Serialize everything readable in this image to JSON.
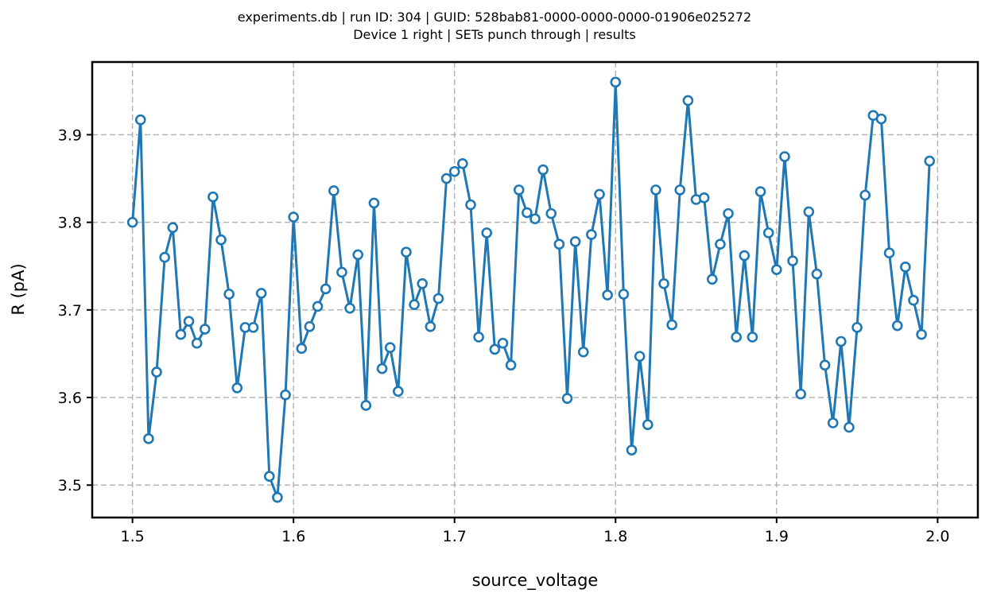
{
  "chart_data": {
    "type": "line",
    "title": "experiments.db | run ID: 304 | GUID: 528bab81-0000-0000-0000-01906e025272",
    "subtitle": "Device 1 right | SETs punch through | results",
    "xlabel": "source_voltage",
    "ylabel": "R (pA)",
    "xlim": [
      1.475,
      2.025
    ],
    "ylim": [
      3.463,
      3.983
    ],
    "xticks": [
      1.5,
      1.6,
      1.7,
      1.8,
      1.9,
      2.0
    ],
    "xtick_labels": [
      "1.5",
      "1.6",
      "1.7",
      "1.8",
      "1.9",
      "2.0"
    ],
    "yticks": [
      3.5,
      3.6,
      3.7,
      3.8,
      3.9
    ],
    "ytick_labels": [
      "3.5",
      "3.6",
      "3.7",
      "3.8",
      "3.9"
    ],
    "grid": true,
    "color": "#1f77b4",
    "marker": "open-circle",
    "x_start": 1.5,
    "x_step": 0.005,
    "y": [
      3.8,
      3.917,
      3.553,
      3.629,
      3.76,
      3.794,
      3.672,
      3.687,
      3.662,
      3.678,
      3.829,
      3.78,
      3.718,
      3.611,
      3.68,
      3.68,
      3.719,
      3.51,
      3.486,
      3.603,
      3.806,
      3.656,
      3.681,
      3.704,
      3.724,
      3.836,
      3.743,
      3.702,
      3.763,
      3.591,
      3.822,
      3.633,
      3.657,
      3.607,
      3.766,
      3.706,
      3.73,
      3.681,
      3.713,
      3.85,
      3.858,
      3.867,
      3.82,
      3.669,
      3.788,
      3.655,
      3.662,
      3.637,
      3.837,
      3.811,
      3.804,
      3.86,
      3.81,
      3.775,
      3.599,
      3.778,
      3.652,
      3.786,
      3.832,
      3.717,
      3.96,
      3.718,
      3.54,
      3.647,
      3.569,
      3.837,
      3.73,
      3.683,
      3.837,
      3.939,
      3.826,
      3.828,
      3.735,
      3.775,
      3.81,
      3.669,
      3.762,
      3.669,
      3.835,
      3.788,
      3.746,
      3.875,
      3.756,
      3.604,
      3.812,
      3.741,
      3.637,
      3.571,
      3.664,
      3.566,
      3.68,
      3.831,
      3.922,
      3.918,
      3.765,
      3.682,
      3.749,
      3.711,
      3.672,
      3.87
    ]
  }
}
